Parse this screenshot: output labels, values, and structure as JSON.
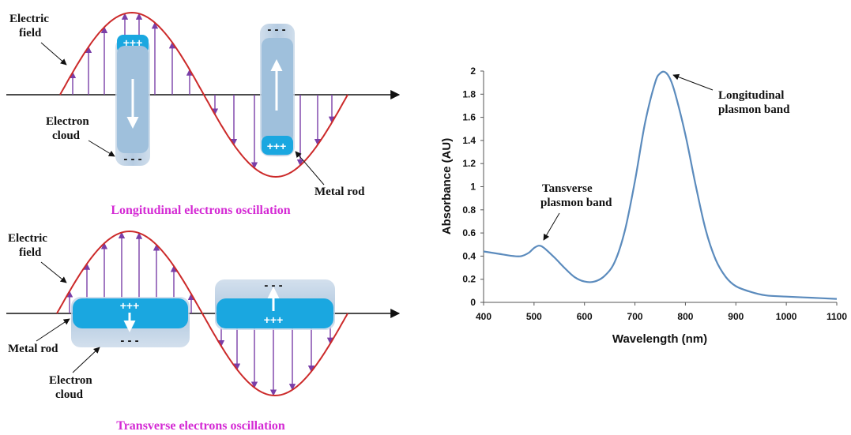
{
  "longitudinal": {
    "label_electric_field_1": "Electric",
    "label_electric_field_2": "field",
    "label_electron_cloud_1": "Electron",
    "label_electron_cloud_2": "cloud",
    "label_metal_rod": "Metal rod",
    "charge_positive": "+++",
    "charge_negative": "- - -",
    "caption": "Longitudinal electrons oscillation"
  },
  "transverse": {
    "label_electric_field_1": "Electric",
    "label_electric_field_2": "field",
    "label_metal_rod": "Metal rod",
    "label_electron_cloud_1": "Electron",
    "label_electron_cloud_2": "cloud",
    "charge_positive": "+++",
    "charge_negative": "- - -",
    "caption": "Transverse electrons oscillation"
  },
  "colors": {
    "wave": "#cc2a2a",
    "field_arrows": "#7a3fa8",
    "caption": "#d42ad4",
    "rod_core": "#1aa7e0",
    "rod_cloud": "#b9cde0",
    "spectrum_line": "#5b8bbd"
  },
  "chart_data": {
    "type": "line",
    "xlabel": "Wavelength (nm)",
    "ylabel": "Absorbance (AU)",
    "xlim": [
      400,
      1100
    ],
    "ylim": [
      0,
      2
    ],
    "xticks": [
      400,
      500,
      600,
      700,
      800,
      900,
      1000,
      1100
    ],
    "yticks": [
      0,
      0.2,
      0.4,
      0.6,
      0.8,
      1,
      1.2,
      1.4,
      1.6,
      1.8,
      2
    ],
    "xtick_labels": [
      "400",
      "500",
      "600",
      "700",
      "800",
      "900",
      "1000",
      "1100"
    ],
    "ytick_labels": [
      "0",
      "0.2",
      "0.4",
      "0.6",
      "0.8",
      "1",
      "1.2",
      "1.4",
      "1.6",
      "1.8",
      "2"
    ],
    "grid": false,
    "series": [
      {
        "x": [
          400,
          430,
          460,
          475,
          490,
          500,
          510,
          520,
          540,
          560,
          580,
          600,
          620,
          640,
          660,
          680,
          700,
          720,
          740,
          750,
          760,
          770,
          780,
          800,
          820,
          840,
          860,
          880,
          900,
          930,
          960,
          1000,
          1050,
          1100
        ],
        "y": [
          0.44,
          0.42,
          0.4,
          0.4,
          0.43,
          0.47,
          0.49,
          0.47,
          0.39,
          0.3,
          0.22,
          0.18,
          0.18,
          0.23,
          0.35,
          0.62,
          1.05,
          1.55,
          1.9,
          1.98,
          1.99,
          1.93,
          1.8,
          1.45,
          1.02,
          0.63,
          0.37,
          0.22,
          0.14,
          0.09,
          0.06,
          0.05,
          0.04,
          0.03
        ]
      }
    ],
    "annotations": [
      {
        "line1": "Longitudinal",
        "line2": "plasmon band",
        "x": 760,
        "y": 1.99
      },
      {
        "line1": "Tansverse",
        "line2": "plasmon band",
        "x": 510,
        "y": 0.49
      }
    ]
  }
}
